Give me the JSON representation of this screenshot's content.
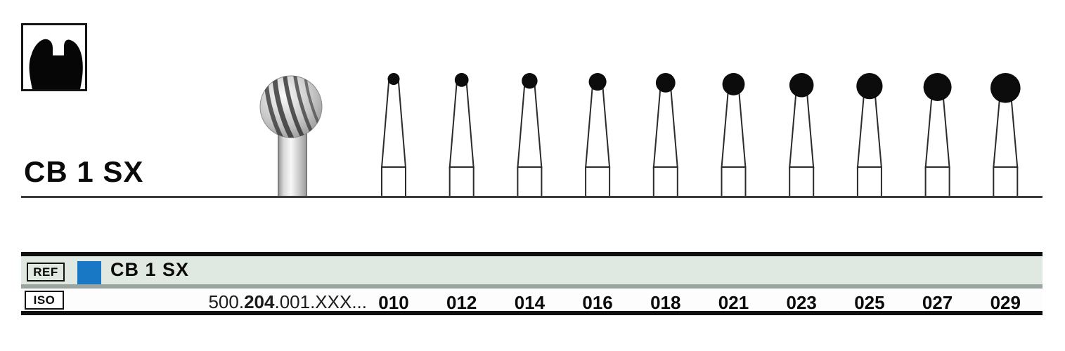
{
  "header": {
    "title": "CB 1 SX",
    "tooth_icon": "molar-tooth-silhouette"
  },
  "figures": {
    "photo_bur": "round-carbide-bur-photo",
    "drawn_burs": "ball-bur-size-drawings"
  },
  "sizes": [
    "010",
    "012",
    "014",
    "016",
    "018",
    "021",
    "023",
    "025",
    "027",
    "029"
  ],
  "table": {
    "ref_label": "REF",
    "ref_value": "CB 1 SX",
    "iso_label": "ISO",
    "iso_prefix": "500.",
    "iso_bold": "204",
    "iso_suffix": ".001.XXX...",
    "colors": {
      "accent_blue": "#1878c6",
      "ref_row_bg": "#dfe9e2",
      "separator_gray": "#9aa4a0"
    }
  }
}
